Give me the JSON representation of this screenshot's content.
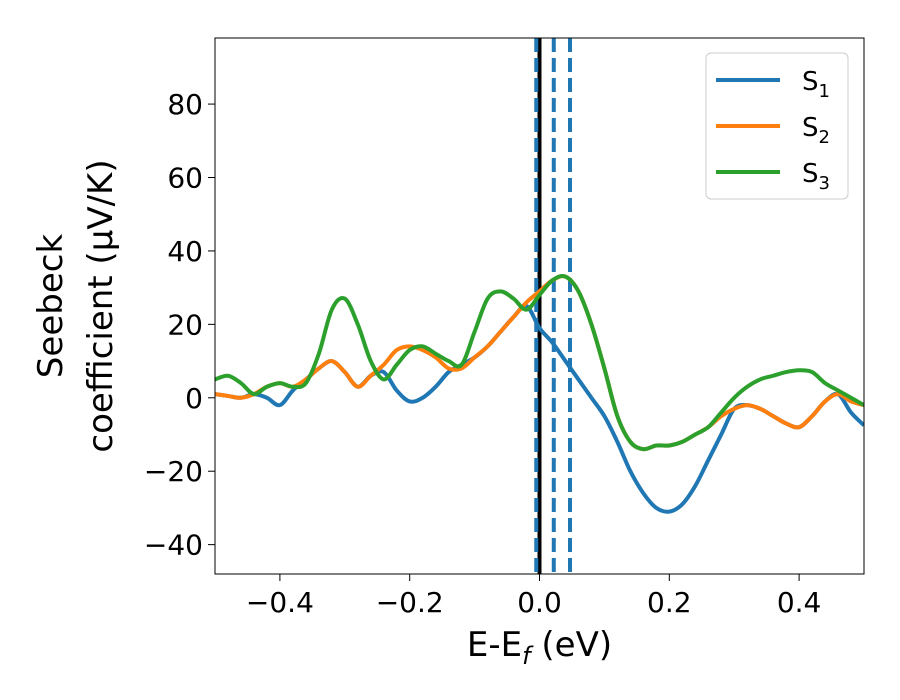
{
  "chart_data": {
    "type": "line",
    "xlabel": {
      "main": "E-E",
      "sub": "f",
      "suffix": " (eV)"
    },
    "ylabel": {
      "line1": "Seebeck",
      "line2": "coefficient  (μV/K)"
    },
    "xlim": [
      -0.5,
      0.5
    ],
    "ylim": [
      -48,
      98
    ],
    "xticks": [
      -0.4,
      -0.2,
      0.0,
      0.2,
      0.4
    ],
    "xtick_labels": [
      "−0.4",
      "−0.2",
      "0.0",
      "0.2",
      "0.4"
    ],
    "yticks": [
      -40,
      -20,
      0,
      20,
      40,
      60,
      80
    ],
    "ytick_labels": [
      "−40",
      "−20",
      "0",
      "20",
      "40",
      "60",
      "80"
    ],
    "legend_position": "top-right",
    "vlines": [
      {
        "x": 0.0,
        "color": "#000000",
        "style": "solid"
      },
      {
        "x": -0.005,
        "color": "#1f77b4",
        "style": "dashed"
      },
      {
        "x": 0.022,
        "color": "#1f77b4",
        "style": "dashed"
      },
      {
        "x": 0.047,
        "color": "#1f77b4",
        "style": "dashed"
      }
    ],
    "series": [
      {
        "name": "S",
        "sub": "1",
        "color": "#1f77b4",
        "x": [
          -0.5,
          -0.48,
          -0.46,
          -0.44,
          -0.42,
          -0.4,
          -0.38,
          -0.36,
          -0.34,
          -0.32,
          -0.3,
          -0.28,
          -0.26,
          -0.24,
          -0.22,
          -0.2,
          -0.18,
          -0.16,
          -0.14,
          -0.12,
          -0.1,
          -0.08,
          -0.06,
          -0.04,
          -0.02,
          0.0,
          0.02,
          0.04,
          0.06,
          0.08,
          0.1,
          0.12,
          0.14,
          0.16,
          0.18,
          0.2,
          0.22,
          0.24,
          0.26,
          0.28,
          0.3,
          0.32,
          0.34,
          0.36,
          0.38,
          0.4,
          0.42,
          0.44,
          0.46,
          0.48,
          0.5
        ],
        "y": [
          1,
          0.5,
          0,
          1,
          0,
          -2,
          2,
          5,
          8,
          10,
          7,
          3,
          6,
          7,
          2,
          -1,
          0,
          3,
          7,
          9,
          11,
          14,
          18,
          22,
          25,
          19,
          15,
          10,
          5,
          0,
          -5,
          -12,
          -20,
          -26,
          -30,
          -31,
          -29,
          -24,
          -17,
          -10,
          -3,
          -2,
          -3,
          -5,
          -7,
          -8,
          -5,
          -1,
          1,
          -4,
          -7.5
        ],
        "ytick_labels": []
      },
      {
        "name": "S",
        "sub": "2",
        "color": "#ff7f0e",
        "x": [
          -0.5,
          -0.48,
          -0.46,
          -0.44,
          -0.42,
          -0.4,
          -0.38,
          -0.36,
          -0.34,
          -0.32,
          -0.3,
          -0.28,
          -0.26,
          -0.24,
          -0.22,
          -0.2,
          -0.18,
          -0.16,
          -0.14,
          -0.12,
          -0.1,
          -0.08,
          -0.06,
          -0.04,
          -0.02,
          0.0,
          0.02,
          0.04,
          0.06,
          0.08,
          0.1,
          0.12,
          0.14,
          0.16,
          0.18,
          0.2,
          0.22,
          0.24,
          0.26,
          0.28,
          0.3,
          0.32,
          0.34,
          0.36,
          0.38,
          0.4,
          0.42,
          0.44,
          0.46,
          0.48,
          0.5
        ],
        "y": [
          1,
          0.5,
          0,
          1,
          3,
          4,
          3,
          5,
          8,
          10,
          7,
          3,
          6,
          9,
          13,
          14,
          13,
          11,
          8,
          8,
          11,
          14,
          18,
          22,
          26,
          29,
          32,
          33,
          29,
          20,
          8,
          -5,
          -12,
          -14,
          -13,
          -13,
          -12,
          -10,
          -8,
          -5,
          -3,
          -2,
          -3,
          -5,
          -7,
          -8,
          -5,
          -1,
          1,
          -1,
          -2
        ]
      },
      {
        "name": "S",
        "sub": "3",
        "color": "#2ca02c",
        "x": [
          -0.5,
          -0.48,
          -0.46,
          -0.44,
          -0.42,
          -0.4,
          -0.38,
          -0.36,
          -0.34,
          -0.32,
          -0.3,
          -0.28,
          -0.26,
          -0.24,
          -0.22,
          -0.2,
          -0.18,
          -0.16,
          -0.14,
          -0.12,
          -0.1,
          -0.08,
          -0.06,
          -0.04,
          -0.02,
          0.0,
          0.02,
          0.04,
          0.06,
          0.08,
          0.1,
          0.12,
          0.14,
          0.16,
          0.18,
          0.2,
          0.22,
          0.24,
          0.26,
          0.28,
          0.3,
          0.32,
          0.34,
          0.36,
          0.38,
          0.4,
          0.42,
          0.44,
          0.46,
          0.48,
          0.5
        ],
        "y": [
          5,
          6,
          4,
          1,
          3,
          4,
          3,
          4,
          12,
          24,
          27,
          20,
          10,
          5,
          9,
          13,
          14,
          12,
          10,
          9,
          18,
          27,
          29,
          27,
          24,
          28,
          32,
          33,
          29,
          20,
          8,
          -5,
          -12,
          -14,
          -13,
          -13,
          -12,
          -10,
          -8,
          -4,
          0,
          3,
          5,
          6,
          7,
          7.5,
          7,
          4,
          2,
          0,
          -2
        ]
      }
    ]
  }
}
